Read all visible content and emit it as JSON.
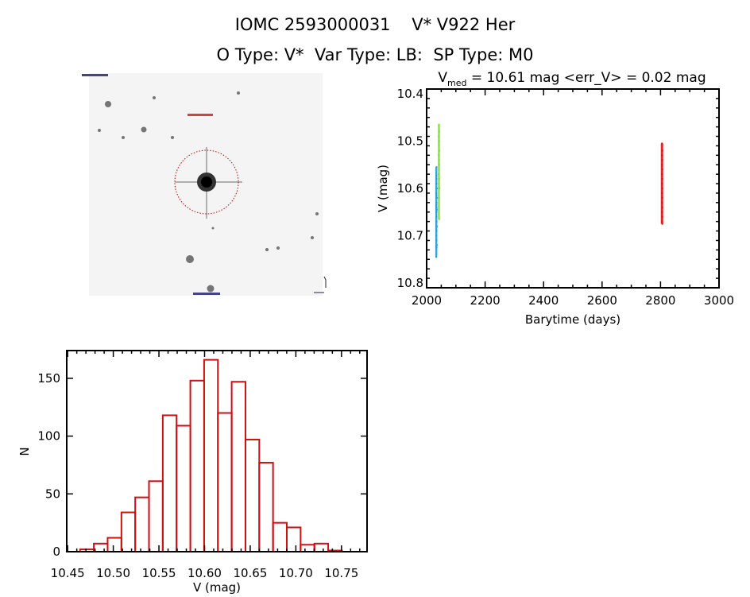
{
  "header": {
    "title": "IOMC 2593000031    V* V922 Her",
    "subtitle": "O Type: V*  Var Type: LB:  SP Type: M0"
  },
  "image_panel": {
    "description_icon": "sky-image-finder-chart",
    "circle_color": "#cc0000"
  },
  "chart_data": [
    {
      "type": "scatter",
      "title_prefix": "V",
      "title_subscript": "med",
      "title_rest": " = 10.61 mag <err_V> = 0.02 mag",
      "xlabel": "Barytime (days)",
      "ylabel": "V (mag)",
      "xlim": [
        2000,
        3000
      ],
      "ylim": [
        10.81,
        10.39
      ],
      "y_reversed": true,
      "xticks": [
        "2000",
        "2200",
        "2400",
        "2600",
        "2800",
        "3000"
      ],
      "yticks": [
        "10.4",
        "10.5",
        "10.6",
        "10.7",
        "10.8"
      ],
      "grid": false,
      "series": [
        {
          "color": "#1e9be0",
          "x": [
            2033,
            2034,
            2034,
            2035,
            2033,
            2034,
            2035,
            2034,
            2033,
            2034,
            2035,
            2034,
            2033,
            2034,
            2035,
            2034,
            2033,
            2034,
            2035,
            2034,
            2033,
            2034
          ],
          "y": [
            10.573,
            10.58,
            10.59,
            10.6,
            10.61,
            10.615,
            10.62,
            10.63,
            10.635,
            10.64,
            10.645,
            10.65,
            10.66,
            10.67,
            10.68,
            10.69,
            10.7,
            10.71,
            10.72,
            10.725,
            10.745,
            10.555
          ]
        },
        {
          "color": "#7ee02a",
          "x": [
            2042,
            2043,
            2041,
            2043,
            2042,
            2044,
            2041,
            2042,
            2043,
            2042,
            2041,
            2043,
            2042,
            2044,
            2042,
            2043
          ],
          "y": [
            10.465,
            10.48,
            10.49,
            10.5,
            10.51,
            10.52,
            10.53,
            10.54,
            10.55,
            10.56,
            10.57,
            10.58,
            10.59,
            10.6,
            10.62,
            10.665
          ]
        },
        {
          "color": "#dd1111",
          "x": [
            2805,
            2806,
            2805,
            2806,
            2805,
            2806,
            2805,
            2806,
            2805,
            2806,
            2805,
            2806,
            2805,
            2806,
            2805,
            2806,
            2805,
            2806
          ],
          "y": [
            10.505,
            10.52,
            10.53,
            10.54,
            10.55,
            10.56,
            10.57,
            10.58,
            10.59,
            10.6,
            10.61,
            10.62,
            10.63,
            10.64,
            10.65,
            10.66,
            10.67,
            10.675
          ]
        }
      ]
    },
    {
      "type": "bar",
      "subtype": "histogram",
      "xlabel": "V (mag)",
      "ylabel": "N",
      "xlim": [
        10.449,
        10.778
      ],
      "ylim": [
        0,
        174
      ],
      "xticks": [
        "10.45",
        "10.50",
        "10.55",
        "10.60",
        "10.65",
        "10.70",
        "10.75"
      ],
      "yticks": [
        "0",
        "50",
        "100",
        "150"
      ],
      "grid": false,
      "bar_color": "#cc1111",
      "bin_start": 10.4636,
      "bin_width": 0.0151,
      "values": [
        2,
        7,
        12,
        34,
        47,
        61,
        118,
        109,
        148,
        166,
        120,
        147,
        97,
        77,
        25,
        21,
        6,
        7,
        1
      ]
    }
  ]
}
